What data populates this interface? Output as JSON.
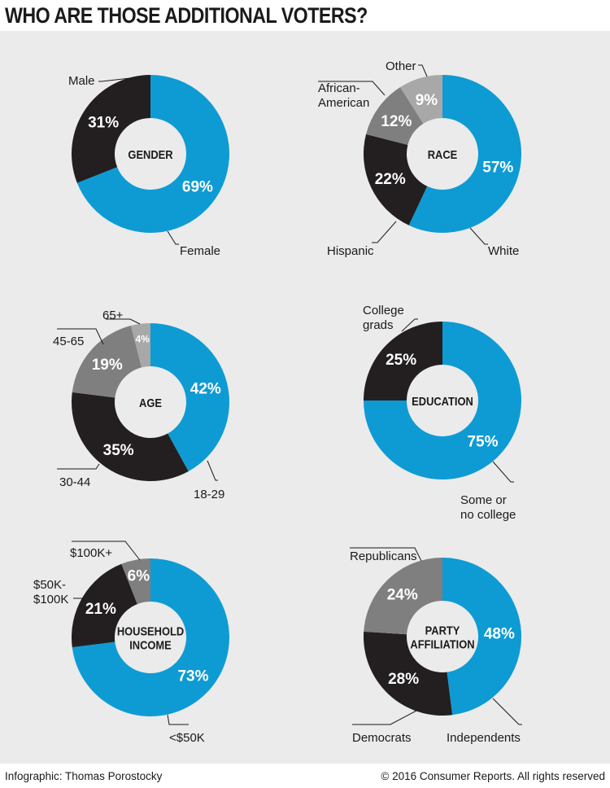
{
  "title": "WHO ARE THOSE ADDITIONAL VOTERS?",
  "footer": {
    "credit": "Infographic: Thomas Porostocky",
    "copyright": "© 2016 Consumer Reports. All rights reserved"
  },
  "colors": {
    "blue": "#0e9bd4",
    "black": "#231f20",
    "dark_gray": "#7f7f7f",
    "light_gray": "#a8a8a8",
    "background": "#ebebeb"
  },
  "chart_data": [
    {
      "type": "pie",
      "subtype": "donut",
      "title": "GENDER",
      "slices": [
        {
          "label": "Female",
          "value": 69,
          "value_label": "69%",
          "color": "#0e9bd4"
        },
        {
          "label": "Male",
          "value": 31,
          "value_label": "31%",
          "color": "#231f20"
        }
      ]
    },
    {
      "type": "pie",
      "subtype": "donut",
      "title": "RACE",
      "slices": [
        {
          "label": "White",
          "value": 57,
          "value_label": "57%",
          "color": "#0e9bd4"
        },
        {
          "label": "Hispanic",
          "value": 22,
          "value_label": "22%",
          "color": "#231f20"
        },
        {
          "label": "African-American",
          "value": 12,
          "value_label": "12%",
          "color": "#7f7f7f"
        },
        {
          "label": "Other",
          "value": 9,
          "value_label": "9%",
          "color": "#a8a8a8"
        }
      ]
    },
    {
      "type": "pie",
      "subtype": "donut",
      "title": "AGE",
      "slices": [
        {
          "label": "18-29",
          "value": 42,
          "value_label": "42%",
          "color": "#0e9bd4"
        },
        {
          "label": "30-44",
          "value": 35,
          "value_label": "35%",
          "color": "#231f20"
        },
        {
          "label": "45-65",
          "value": 19,
          "value_label": "19%",
          "color": "#7f7f7f"
        },
        {
          "label": "65+",
          "value": 4,
          "value_label": "4%",
          "color": "#a8a8a8"
        }
      ]
    },
    {
      "type": "pie",
      "subtype": "donut",
      "title": "EDUCATION",
      "slices": [
        {
          "label": "Some or no college",
          "value": 75,
          "value_label": "75%",
          "color": "#0e9bd4"
        },
        {
          "label": "College grads",
          "value": 25,
          "value_label": "25%",
          "color": "#231f20"
        }
      ]
    },
    {
      "type": "pie",
      "subtype": "donut",
      "title": "HOUSEHOLD INCOME",
      "slices": [
        {
          "label": "<$50K",
          "value": 73,
          "value_label": "73%",
          "color": "#0e9bd4"
        },
        {
          "label": "$50K-$100K",
          "value": 21,
          "value_label": "21%",
          "color": "#231f20"
        },
        {
          "label": "$100K+",
          "value": 6,
          "value_label": "6%",
          "color": "#7f7f7f"
        }
      ]
    },
    {
      "type": "pie",
      "subtype": "donut",
      "title": "PARTY AFFILIATION",
      "slices": [
        {
          "label": "Independents",
          "value": 48,
          "value_label": "48%",
          "color": "#0e9bd4"
        },
        {
          "label": "Democrats",
          "value": 28,
          "value_label": "28%",
          "color": "#231f20"
        },
        {
          "label": "Republicans",
          "value": 24,
          "value_label": "24%",
          "color": "#7f7f7f"
        }
      ]
    }
  ]
}
